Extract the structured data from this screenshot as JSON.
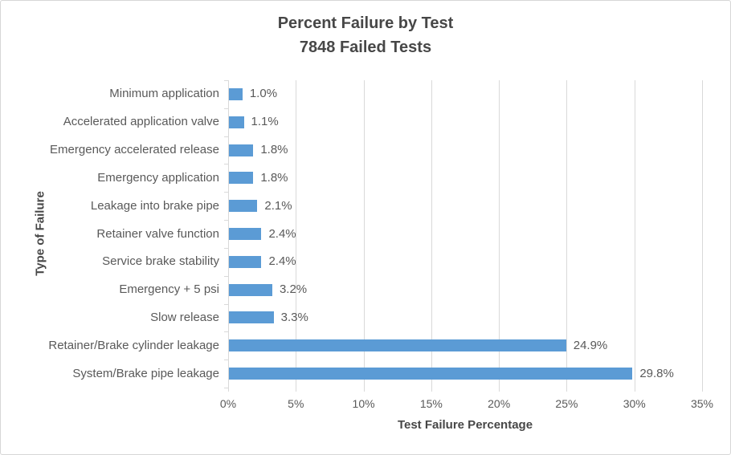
{
  "chart_data": {
    "type": "bar",
    "orientation": "horizontal",
    "title": "Percent Failure by Test",
    "subtitle": "7848 Failed Tests",
    "xlabel": "Test Failure Percentage",
    "ylabel": "Type of Failure",
    "categories": [
      "Minimum application",
      "Accelerated application valve",
      "Emergency accelerated release",
      "Emergency application",
      "Leakage into brake pipe",
      "Retainer valve function",
      "Service brake stability",
      "Emergency + 5 psi",
      "Slow release",
      "Retainer/Brake cylinder leakage",
      "System/Brake pipe leakage"
    ],
    "values": [
      1.0,
      1.1,
      1.8,
      1.8,
      2.1,
      2.4,
      2.4,
      3.2,
      3.3,
      24.9,
      29.8
    ],
    "value_labels": [
      "1.0%",
      "1.1%",
      "1.8%",
      "1.8%",
      "2.1%",
      "2.4%",
      "2.4%",
      "3.2%",
      "3.3%",
      "24.9%",
      "29.8%"
    ],
    "xlim": [
      0,
      35
    ],
    "xtick_step": 5,
    "xticks": [
      "0%",
      "5%",
      "10%",
      "15%",
      "20%",
      "25%",
      "30%",
      "35%"
    ],
    "grid": true,
    "legend": false,
    "colors": {
      "bar": "#5B9BD5",
      "gridline": "#D9D9D9",
      "title_text": "#474747",
      "label_text": "#595959",
      "tick_text": "#595959",
      "background": "#FFFFFF",
      "border": "#D6D6D6"
    }
  }
}
